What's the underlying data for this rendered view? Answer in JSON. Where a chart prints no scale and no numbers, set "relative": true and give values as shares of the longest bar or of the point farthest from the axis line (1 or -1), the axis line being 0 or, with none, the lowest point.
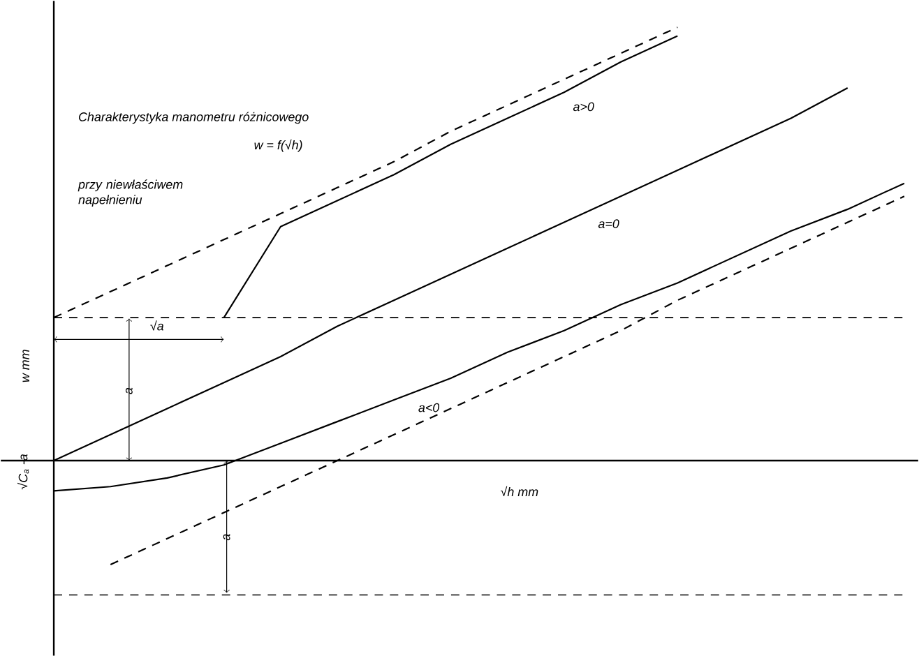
{
  "chart_data": {
    "type": "line",
    "title": "Charakterystyka manometru różnicowego",
    "subtitle": "w = f(√h)",
    "xlabel": "√h  mm",
    "ylabel": "w  mm",
    "relative": true,
    "marker": "none",
    "categories": [
      null,
      null,
      null,
      null,
      null,
      null,
      null,
      null,
      null,
      null,
      null,
      null,
      null,
      null,
      null,
      null
    ],
    "series": [
      {
        "name": "a>0",
        "color": "#000000",
        "values": [
          null,
          null,
          null,
          0.33,
          0.54,
          0.6,
          0.66,
          0.73,
          0.79,
          0.85,
          0.92,
          0.98,
          null,
          null,
          null,
          null
        ]
      },
      {
        "color": "#000000",
        "line_style": "dashed",
        "values": [
          0.33,
          0.39,
          0.45,
          0.51,
          0.57,
          0.63,
          0.69,
          0.76,
          0.82,
          0.88,
          0.94,
          1.0,
          null,
          null,
          null,
          null
        ]
      },
      {
        "name": "a=0",
        "color": "#000000",
        "values": [
          0,
          0.06,
          0.12,
          0.18,
          0.24,
          0.31,
          0.37,
          0.43,
          0.49,
          0.55,
          0.61,
          0.67,
          0.73,
          0.79,
          0.86,
          null
        ]
      },
      {
        "name": "a<0",
        "color": "#000000",
        "values": [
          -0.07,
          -0.06,
          -0.04,
          -0.01,
          0.04,
          0.09,
          0.14,
          0.19,
          0.25,
          0.3,
          0.36,
          0.41,
          0.47,
          0.53,
          0.58,
          0.64
        ]
      },
      {
        "color": "#000000",
        "line_style": "dashed",
        "values": [
          null,
          -0.24,
          -0.18,
          -0.12,
          -0.06,
          0.0,
          0.06,
          0.12,
          0.18,
          0.24,
          0.3,
          0.37,
          0.43,
          0.49,
          0.55,
          0.61
        ]
      }
    ],
    "ref_lines": [
      {
        "axis": "y",
        "value": 0.33,
        "line_style": "dashed"
      },
      {
        "axis": "y",
        "value": -0.31,
        "line_style": "dashed"
      }
    ],
    "annotations": [
      "przy niewłaściwem napełnieniu",
      "√a",
      "a",
      "a",
      "√C$_{a}$ -a"
    ]
  }
}
